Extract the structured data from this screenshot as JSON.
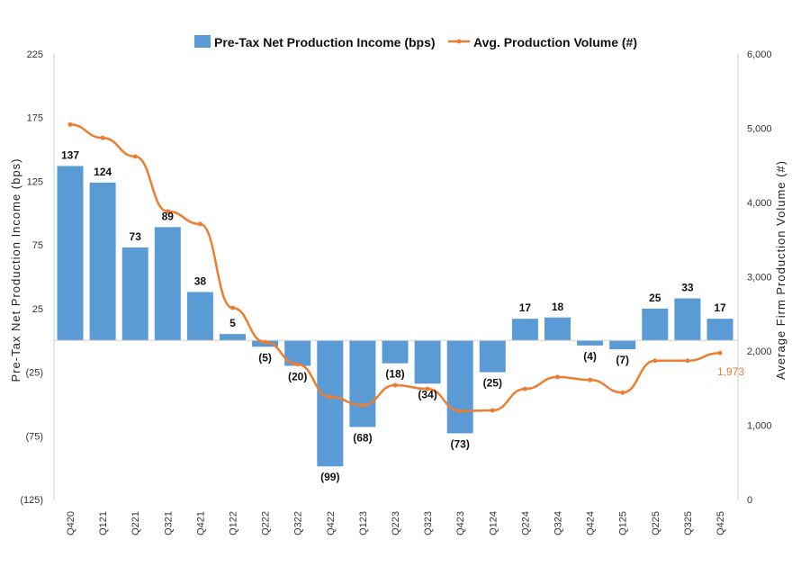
{
  "chart_data": {
    "type": "bar+line",
    "categories": [
      "Q420",
      "Q121",
      "Q221",
      "Q321",
      "Q421",
      "Q122",
      "Q222",
      "Q322",
      "Q422",
      "Q123",
      "Q223",
      "Q323",
      "Q423",
      "Q124",
      "Q224",
      "Q324",
      "Q424",
      "Q125",
      "Q225",
      "Q325",
      "Q425"
    ],
    "series": [
      {
        "name": "Pre-Tax Net Production Income (bps)",
        "type": "bar",
        "axis": "left",
        "color": "#5b9bd5",
        "values": [
          137,
          124,
          73,
          89,
          38,
          5,
          -5,
          -20,
          -99,
          -68,
          -18,
          -34,
          -73,
          -25,
          17,
          18,
          -4,
          -7,
          25,
          33,
          17
        ],
        "labels": [
          "137",
          "124",
          "73",
          "89",
          "38",
          "5",
          "(5)",
          "(20)",
          "(99)",
          "(68)",
          "(18)",
          "(34)",
          "(73)",
          "(25)",
          "17",
          "18",
          "(4)",
          "(7)",
          "25",
          "33",
          "17"
        ]
      },
      {
        "name": "Avg. Production Volume (#)",
        "type": "line",
        "axis": "right",
        "color": "#ed7d31",
        "values": [
          5050,
          4870,
          4620,
          3880,
          3710,
          2580,
          2120,
          1820,
          1380,
          1270,
          1540,
          1490,
          1190,
          1200,
          1490,
          1650,
          1610,
          1440,
          1870,
          1870,
          1973
        ],
        "end_label": "1,973"
      }
    ],
    "ylabel_left": "Pre-Tax Net Production Income (bps)",
    "ylabel_right": "Average Firm Production Volume (#)",
    "ylim_left": [
      -125,
      225
    ],
    "yticks_left": [
      "225",
      "175",
      "125",
      "75",
      "25",
      "(25)",
      "(75)",
      "(125)"
    ],
    "ylim_right": [
      0,
      6000
    ],
    "yticks_right": [
      "6,000",
      "5,000",
      "4,000",
      "3,000",
      "2,000",
      "1,000",
      "0"
    ],
    "grid": false,
    "legend": "top"
  }
}
